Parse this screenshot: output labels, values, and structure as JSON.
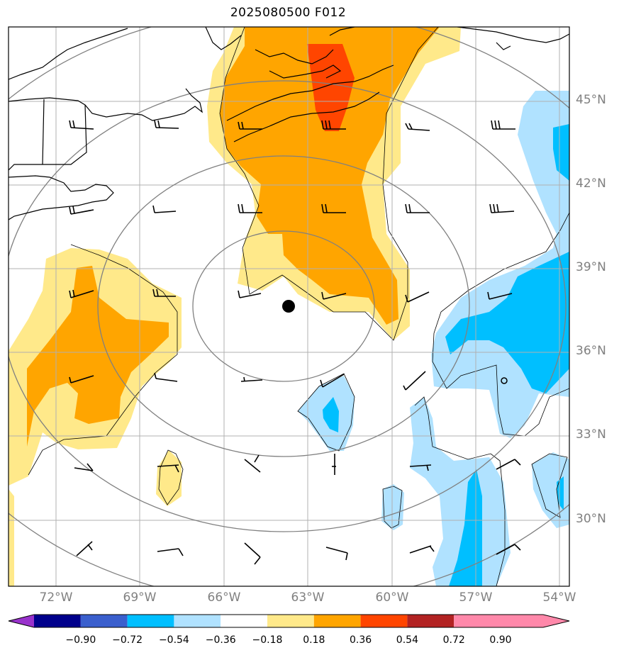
{
  "title": "2025080500 F012",
  "lat_labels": [
    "45°N",
    "42°N",
    "39°N",
    "36°N",
    "33°N",
    "30°N"
  ],
  "lon_labels": [
    "72°W",
    "69°W",
    "66°W",
    "63°W",
    "60°W",
    "57°W",
    "54°W"
  ],
  "colorbar": {
    "ticks": [
      "−0.90",
      "−0.72",
      "−0.54",
      "−0.36",
      "−0.18",
      "0.18",
      "0.36",
      "0.54",
      "0.72",
      "0.90"
    ],
    "colors": [
      "#9932cc",
      "#00008b",
      "#3a5fcd",
      "#00bfff",
      "#b0e2ff",
      "#ffffff",
      "#ffe98a",
      "#ffa500",
      "#ff4500",
      "#b22222",
      "#ff88aa"
    ]
  },
  "storm_center": {
    "lat": 37.7,
    "lon": -63.7
  },
  "field_colors": {
    "light_yellow": "#ffe98a",
    "orange": "#ffa500",
    "red_orange": "#ff4500",
    "light_blue": "#b0e2ff",
    "deep_sky_blue": "#00bfff",
    "range_ring": "#808080",
    "grid": "#b0b0b0"
  },
  "range_rings_count": 4
}
